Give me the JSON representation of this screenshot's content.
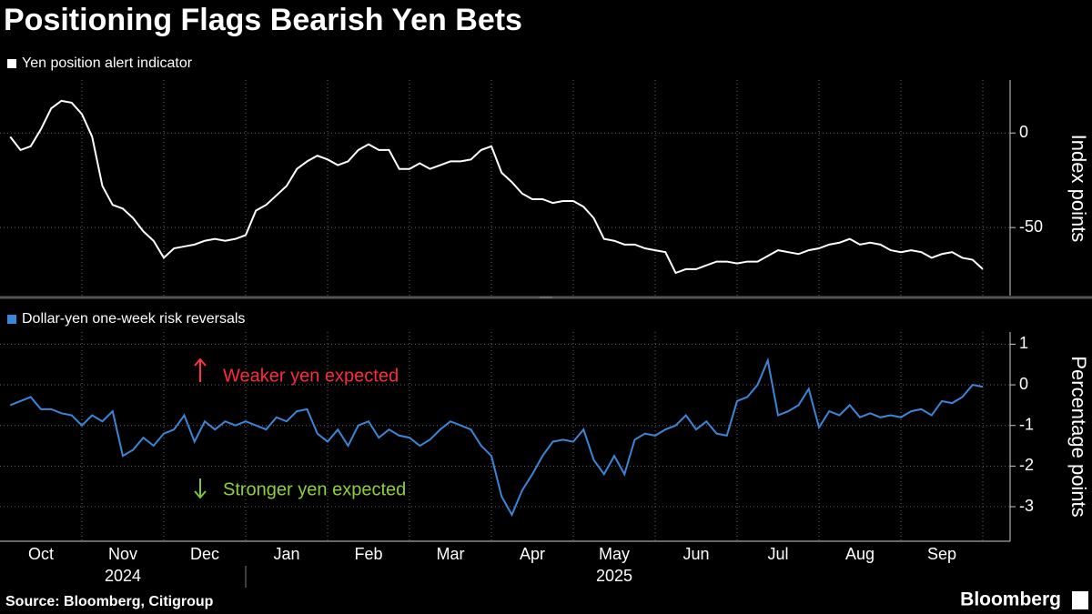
{
  "chart_data": [
    {
      "type": "line",
      "title": "Positioning Flags Bearish Yen Bets",
      "y_label": "Index points",
      "x": [
        "2024-10",
        "2024-10",
        "2024-10",
        "2024-10",
        "2024-10",
        "2024-10",
        "2024-10",
        "2024-10",
        "2024-11",
        "2024-11",
        "2024-11",
        "2024-11",
        "2024-11",
        "2024-11",
        "2024-11",
        "2024-11",
        "2024-12",
        "2024-12",
        "2024-12",
        "2024-12",
        "2024-12",
        "2024-12",
        "2024-12",
        "2024-12",
        "2025-01",
        "2025-01",
        "2025-01",
        "2025-01",
        "2025-01",
        "2025-01",
        "2025-01",
        "2025-01",
        "2025-02",
        "2025-02",
        "2025-02",
        "2025-02",
        "2025-02",
        "2025-02",
        "2025-02",
        "2025-02",
        "2025-03",
        "2025-03",
        "2025-03",
        "2025-03",
        "2025-03",
        "2025-03",
        "2025-03",
        "2025-03",
        "2025-04",
        "2025-04",
        "2025-04",
        "2025-04",
        "2025-04",
        "2025-04",
        "2025-04",
        "2025-04",
        "2025-05",
        "2025-05",
        "2025-05",
        "2025-05",
        "2025-05",
        "2025-05",
        "2025-05",
        "2025-05",
        "2025-06",
        "2025-06",
        "2025-06",
        "2025-06",
        "2025-06",
        "2025-06",
        "2025-06",
        "2025-06",
        "2025-07",
        "2025-07",
        "2025-07",
        "2025-07",
        "2025-07",
        "2025-07",
        "2025-07",
        "2025-07",
        "2025-08",
        "2025-08",
        "2025-08",
        "2025-08",
        "2025-08",
        "2025-08",
        "2025-08",
        "2025-08",
        "2025-09",
        "2025-09",
        "2025-09",
        "2025-09",
        "2025-09",
        "2025-09",
        "2025-09",
        "2025-09"
      ],
      "series": [
        {
          "name": "Yen position alert indicator",
          "color": "#ffffff",
          "values": [
            -2,
            -9,
            -7,
            2,
            13,
            17,
            16,
            10,
            -2,
            -28,
            -38,
            -40,
            -45,
            -52,
            -57,
            -66,
            -61,
            -60,
            -59,
            -57,
            -56,
            -57,
            -56,
            -54,
            -41,
            -38,
            -33,
            -28,
            -19,
            -15,
            -12,
            -14,
            -17,
            -15,
            -9,
            -6,
            -9,
            -9,
            -19,
            -19,
            -16,
            -19,
            -17,
            -15,
            -15,
            -14,
            -9,
            -7,
            -21,
            -26,
            -32,
            -35,
            -35,
            -37,
            -36,
            -36,
            -39,
            -45,
            -56,
            -57,
            -59,
            -59,
            -61,
            -62,
            -63,
            -74,
            -72,
            -72,
            -70,
            -68,
            -68,
            -69,
            -68,
            -68,
            -65,
            -62,
            -63,
            -64,
            -62,
            -61,
            -59,
            -58,
            -56,
            -59,
            -58,
            -59,
            -62,
            -63,
            -62,
            -63,
            -66,
            -64,
            -63,
            -66,
            -67,
            -72
          ]
        }
      ],
      "ylim": [
        -86,
        28
      ],
      "yticks": [
        0,
        -50
      ],
      "grid": true
    },
    {
      "type": "line",
      "y_label": "Percentage points",
      "x": [
        "2024-10",
        "2024-10",
        "2024-10",
        "2024-10",
        "2024-10",
        "2024-10",
        "2024-10",
        "2024-10",
        "2024-11",
        "2024-11",
        "2024-11",
        "2024-11",
        "2024-11",
        "2024-11",
        "2024-11",
        "2024-11",
        "2024-12",
        "2024-12",
        "2024-12",
        "2024-12",
        "2024-12",
        "2024-12",
        "2024-12",
        "2024-12",
        "2025-01",
        "2025-01",
        "2025-01",
        "2025-01",
        "2025-01",
        "2025-01",
        "2025-01",
        "2025-01",
        "2025-02",
        "2025-02",
        "2025-02",
        "2025-02",
        "2025-02",
        "2025-02",
        "2025-02",
        "2025-02",
        "2025-03",
        "2025-03",
        "2025-03",
        "2025-03",
        "2025-03",
        "2025-03",
        "2025-03",
        "2025-03",
        "2025-04",
        "2025-04",
        "2025-04",
        "2025-04",
        "2025-04",
        "2025-04",
        "2025-04",
        "2025-04",
        "2025-05",
        "2025-05",
        "2025-05",
        "2025-05",
        "2025-05",
        "2025-05",
        "2025-05",
        "2025-05",
        "2025-06",
        "2025-06",
        "2025-06",
        "2025-06",
        "2025-06",
        "2025-06",
        "2025-06",
        "2025-06",
        "2025-07",
        "2025-07",
        "2025-07",
        "2025-07",
        "2025-07",
        "2025-07",
        "2025-07",
        "2025-07",
        "2025-08",
        "2025-08",
        "2025-08",
        "2025-08",
        "2025-08",
        "2025-08",
        "2025-08",
        "2025-08",
        "2025-09",
        "2025-09",
        "2025-09",
        "2025-09",
        "2025-09",
        "2025-09",
        "2025-09",
        "2025-09"
      ],
      "series": [
        {
          "name": "Dollar-yen one-week risk reversals",
          "color": "#3a86d8",
          "values": [
            -0.5,
            -0.4,
            -0.3,
            -0.6,
            -0.6,
            -0.7,
            -0.75,
            -1.0,
            -0.75,
            -0.9,
            -0.65,
            -1.75,
            -1.6,
            -1.3,
            -1.5,
            -1.2,
            -1.1,
            -0.75,
            -1.4,
            -0.9,
            -1.1,
            -0.9,
            -1.0,
            -0.9,
            -1.0,
            -1.1,
            -0.8,
            -0.9,
            -0.65,
            -0.6,
            -1.2,
            -1.4,
            -1.1,
            -1.5,
            -1.0,
            -0.9,
            -1.3,
            -1.1,
            -1.25,
            -1.3,
            -1.5,
            -1.35,
            -1.1,
            -0.9,
            -1.0,
            -1.1,
            -1.5,
            -1.75,
            -2.75,
            -3.2,
            -2.6,
            -2.2,
            -1.75,
            -1.4,
            -1.35,
            -1.4,
            -1.1,
            -1.85,
            -2.2,
            -1.75,
            -2.2,
            -1.35,
            -1.2,
            -1.25,
            -1.1,
            -1.0,
            -0.75,
            -1.1,
            -0.9,
            -1.2,
            -1.25,
            -0.4,
            -0.3,
            0,
            0.6,
            -0.75,
            -0.65,
            -0.5,
            -0.1,
            -1.05,
            -0.65,
            -0.75,
            -0.5,
            -0.8,
            -0.7,
            -0.8,
            -0.75,
            -0.8,
            -0.65,
            -0.6,
            -0.75,
            -0.4,
            -0.45,
            -0.3,
            0,
            -0.05
          ]
        }
      ],
      "ylim": [
        -3.85,
        1.3
      ],
      "yticks": [
        1,
        0,
        -1,
        -2,
        -3
      ],
      "grid": true,
      "annotations": [
        "Weaker yen expected",
        "Stronger yen expected"
      ],
      "months": [
        "Oct",
        "Nov",
        "Dec",
        "Jan",
        "Feb",
        "Mar",
        "Apr",
        "May",
        "Jun",
        "Jul",
        "Aug",
        "Sep"
      ],
      "years": [
        "2024",
        "2025"
      ]
    }
  ],
  "footer": {
    "source": "Source: Bloomberg, Citigroup",
    "brand": "Bloomberg"
  }
}
